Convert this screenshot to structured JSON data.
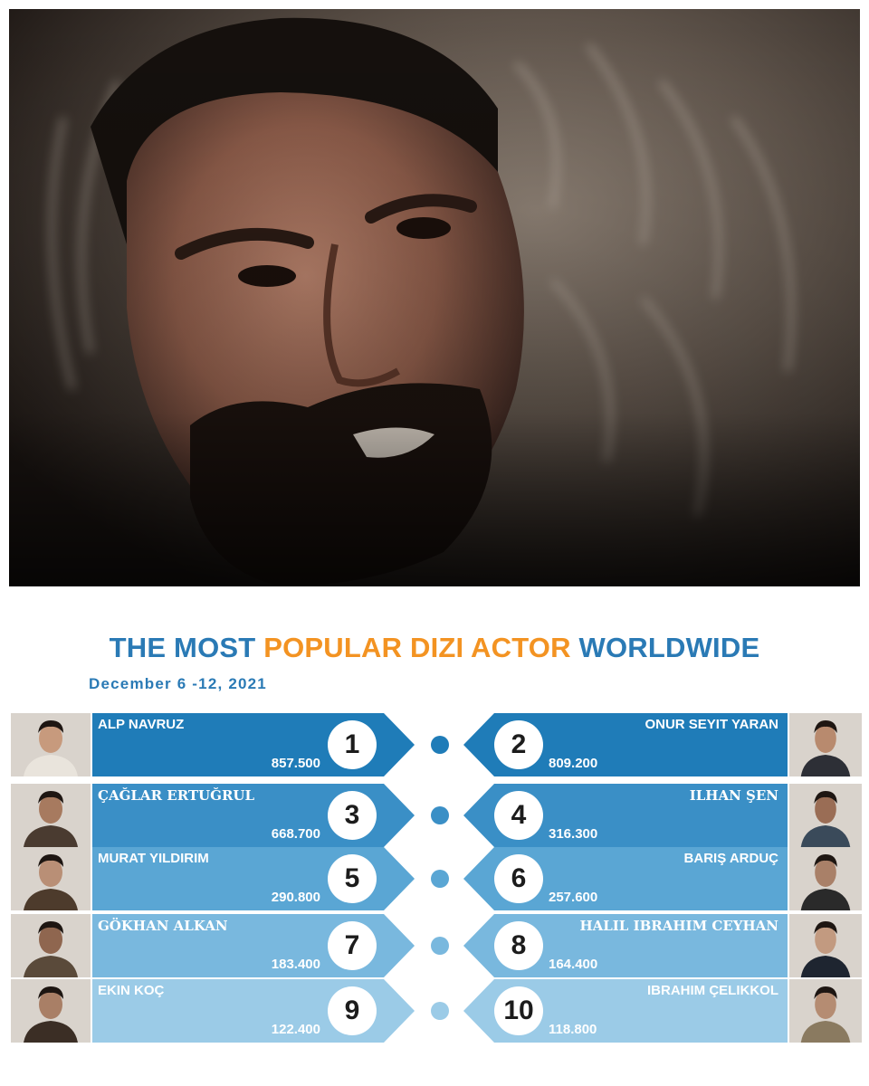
{
  "title": {
    "part1": "THE MOST",
    "part2": "POPULAR DIZI ACTOR",
    "part3": "WORLDWIDE"
  },
  "subtitle": "December 6 -12, 2021",
  "colors": {
    "title_blue": "#2a7ab5",
    "title_orange": "#f39322",
    "row_1": "#1f7cb8",
    "row_2": "#3a8fc6",
    "row_3": "#5aa6d4",
    "row_4": "#79b8de",
    "row_5": "#9bcbe7"
  },
  "rows": [
    {
      "left": {
        "rank": "1",
        "name": "ALP NAVRUZ",
        "value": "857.500"
      },
      "right": {
        "rank": "2",
        "name": "ONUR SEYIT YARAN",
        "value": "809.200"
      }
    },
    {
      "left": {
        "rank": "3",
        "name": "ÇAĞLAR ERTUĞRUL",
        "value": "668.700"
      },
      "right": {
        "rank": "4",
        "name": "ILHAN ŞEN",
        "value": "316.300"
      }
    },
    {
      "left": {
        "rank": "5",
        "name": "MURAT YILDIRIM",
        "value": "290.800"
      },
      "right": {
        "rank": "6",
        "name": "BARIŞ ARDUÇ",
        "value": "257.600"
      }
    },
    {
      "left": {
        "rank": "7",
        "name": "GÖKHAN ALKAN",
        "value": "183.400"
      },
      "right": {
        "rank": "8",
        "name": "HALIL IBRAHIM CEYHAN",
        "value": "164.400"
      }
    },
    {
      "left": {
        "rank": "9",
        "name": "EKIN KOÇ",
        "value": "122.400"
      },
      "right": {
        "rank": "10",
        "name": "IBRAHIM ÇELIKKOL",
        "value": "118.800"
      }
    }
  ]
}
